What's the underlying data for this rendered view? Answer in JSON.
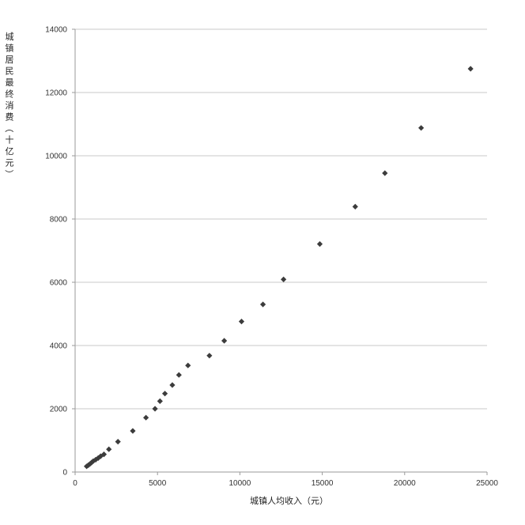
{
  "chart_data": {
    "type": "scatter",
    "title": "",
    "xlabel": "城镇人均收入（元）",
    "ylabel": "城镇居民最终消费（十亿元）",
    "xlim": [
      0,
      25000
    ],
    "ylim": [
      0,
      14000
    ],
    "x_ticks": [
      0,
      5000,
      10000,
      15000,
      20000,
      25000
    ],
    "y_ticks": [
      0,
      2000,
      4000,
      6000,
      8000,
      10000,
      12000,
      14000
    ],
    "x_tick_labels": [
      "0",
      "5000",
      "10000",
      "15000",
      "20000",
      "25000"
    ],
    "y_tick_labels": [
      "0",
      "2000",
      "4000",
      "6000",
      "8000",
      "10000",
      "12000",
      "14000"
    ],
    "grid": "horizontal",
    "legend": "none",
    "marker": "diamond",
    "colors": {
      "marker": "#3c3c3c",
      "grid": "#c8c8c8",
      "axis": "#9a9a9a"
    },
    "series": [
      {
        "points": [
          {
            "x": 700,
            "y": 180
          },
          {
            "x": 800,
            "y": 215
          },
          {
            "x": 900,
            "y": 255
          },
          {
            "x": 1000,
            "y": 300
          },
          {
            "x": 1100,
            "y": 345
          },
          {
            "x": 1250,
            "y": 390
          },
          {
            "x": 1400,
            "y": 440
          },
          {
            "x": 1550,
            "y": 500
          },
          {
            "x": 1750,
            "y": 560
          },
          {
            "x": 2050,
            "y": 720
          },
          {
            "x": 2600,
            "y": 960
          },
          {
            "x": 3500,
            "y": 1300
          },
          {
            "x": 4300,
            "y": 1720
          },
          {
            "x": 4850,
            "y": 2000
          },
          {
            "x": 5150,
            "y": 2240
          },
          {
            "x": 5450,
            "y": 2480
          },
          {
            "x": 5900,
            "y": 2750
          },
          {
            "x": 6300,
            "y": 3070
          },
          {
            "x": 6850,
            "y": 3370
          },
          {
            "x": 8150,
            "y": 3680
          },
          {
            "x": 9050,
            "y": 4150
          },
          {
            "x": 10100,
            "y": 4760
          },
          {
            "x": 11400,
            "y": 5300
          },
          {
            "x": 12650,
            "y": 6090
          },
          {
            "x": 14850,
            "y": 7210
          },
          {
            "x": 17000,
            "y": 8390
          },
          {
            "x": 18800,
            "y": 9450
          },
          {
            "x": 21000,
            "y": 10880
          },
          {
            "x": 24000,
            "y": 12750
          }
        ]
      }
    ]
  }
}
